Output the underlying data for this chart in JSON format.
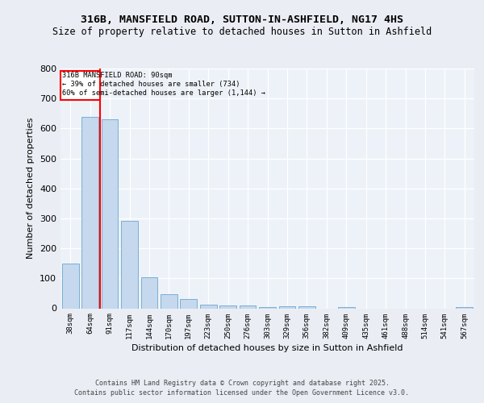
{
  "title1": "316B, MANSFIELD ROAD, SUTTON-IN-ASHFIELD, NG17 4HS",
  "title2": "Size of property relative to detached houses in Sutton in Ashfield",
  "xlabel": "Distribution of detached houses by size in Sutton in Ashfield",
  "ylabel": "Number of detached properties",
  "categories": [
    "38sqm",
    "64sqm",
    "91sqm",
    "117sqm",
    "144sqm",
    "170sqm",
    "197sqm",
    "223sqm",
    "250sqm",
    "276sqm",
    "303sqm",
    "329sqm",
    "356sqm",
    "382sqm",
    "409sqm",
    "435sqm",
    "461sqm",
    "488sqm",
    "514sqm",
    "541sqm",
    "567sqm"
  ],
  "values": [
    150,
    640,
    630,
    293,
    104,
    47,
    30,
    11,
    10,
    10,
    5,
    7,
    7,
    0,
    5,
    0,
    0,
    0,
    0,
    0,
    5
  ],
  "bar_color": "#c5d8ed",
  "bar_edge_color": "#7aafd4",
  "property_line_x": 1.5,
  "annotation_text1": "316B MANSFIELD ROAD: 90sqm",
  "annotation_text2": "← 39% of detached houses are smaller (734)",
  "annotation_text3": "60% of semi-detached houses are larger (1,144) →",
  "ylim": [
    0,
    800
  ],
  "yticks": [
    0,
    100,
    200,
    300,
    400,
    500,
    600,
    700,
    800
  ],
  "bg_color": "#eaeef4",
  "plot_bg_color": "#edf2f8",
  "footer1": "Contains HM Land Registry data © Crown copyright and database right 2025.",
  "footer2": "Contains public sector information licensed under the Open Government Licence v3.0."
}
